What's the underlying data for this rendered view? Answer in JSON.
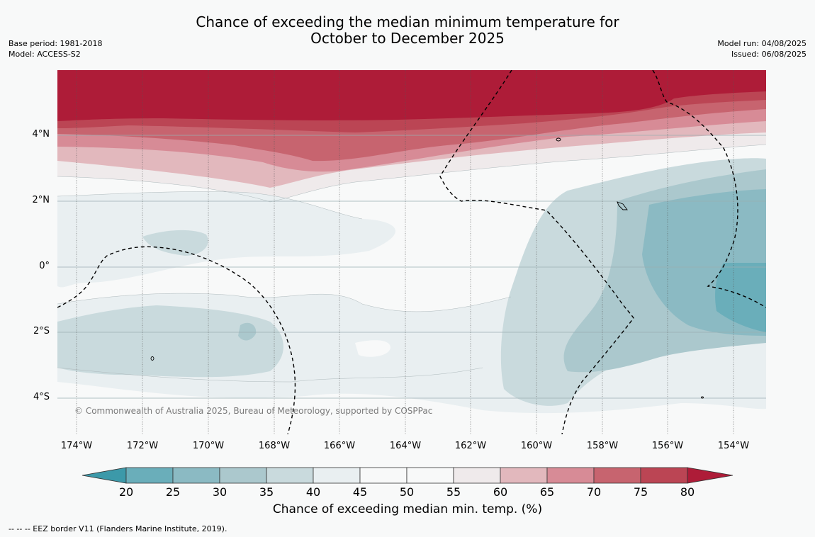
{
  "title": {
    "line1": "Chance of exceeding the median minimum temperature for",
    "line2": "October to December 2025"
  },
  "meta_left": {
    "base_period": "Base period: 1981-2018",
    "model": "Model: ACCESS-S2"
  },
  "meta_right": {
    "model_run": "Model run: 04/08/2025",
    "issued": "Issued: 06/08/2025"
  },
  "map": {
    "x_ticks": [
      "174°W",
      "172°W",
      "170°W",
      "168°W",
      "166°W",
      "164°W",
      "162°W",
      "160°W",
      "158°W",
      "156°W",
      "154°W"
    ],
    "y_ticks": [
      "4°N",
      "2°N",
      "0°",
      "2°S",
      "4°S"
    ],
    "copyright": "© Commonwealth of Australia 2025, Bureau of Meteorology, supported by COSPPac"
  },
  "colorbar": {
    "ticks": [
      "20",
      "25",
      "30",
      "35",
      "40",
      "45",
      "50",
      "55",
      "60",
      "65",
      "70",
      "75",
      "80"
    ],
    "colors": [
      "#3c99a9",
      "#6aaeba",
      "#8bbac3",
      "#abc8cd",
      "#c9dadd",
      "#e9eff1",
      "#f8f9f9",
      "#f8f9f9",
      "#efeaeb",
      "#e2b8bd",
      "#d78b96",
      "#c7646f",
      "#bb4554",
      "#ae1c38"
    ],
    "label": "Chance of exceeding median min. temp. (%)"
  },
  "footnote": "--  --  -- EEZ border V11 (Flanders Marine Institute, 2019)."
}
